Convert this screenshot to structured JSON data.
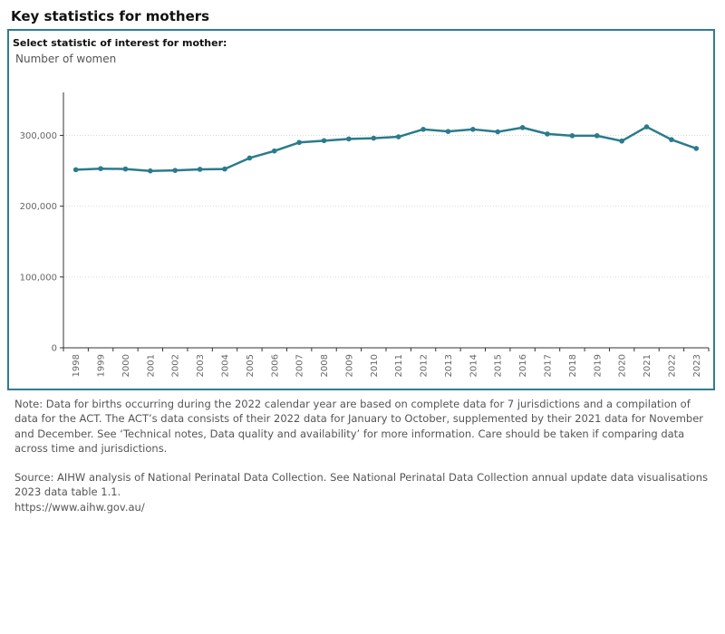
{
  "header": {
    "title": "Key statistics for mothers"
  },
  "selector": {
    "label": "Select statistic of interest for mother:",
    "value": "Number of women"
  },
  "colors": {
    "line": "#2a7b8c",
    "frame": "#2f7d8f",
    "grid": "#d9d9d9"
  },
  "chart_data": {
    "type": "line",
    "title": "",
    "xlabel": "",
    "ylabel": "",
    "x": [
      "1998",
      "1999",
      "2000",
      "2001",
      "2002",
      "2003",
      "2004",
      "2005",
      "2006",
      "2007",
      "2008",
      "2009",
      "2010",
      "2011",
      "2012",
      "2013",
      "2014",
      "2015",
      "2016",
      "2017",
      "2018",
      "2019",
      "2020",
      "2021",
      "2022",
      "2023"
    ],
    "series": [
      {
        "values": [
          251500,
          253000,
          252500,
          249800,
          250500,
          252000,
          252500,
          268000,
          278000,
          290000,
          292500,
          295000,
          296000,
          298000,
          308500,
          305500,
          308500,
          305000,
          311000,
          302000,
          299500,
          299500,
          292000,
          312000,
          294000,
          281500
        ]
      }
    ],
    "ylim": [
      0,
      330000
    ],
    "yticks": [
      0,
      100000,
      200000,
      300000
    ],
    "ytick_labels": [
      "0",
      "100,000",
      "200,000",
      "300,000"
    ],
    "grid": true,
    "legend": "none"
  },
  "notes": {
    "note": "Note: Data for births occurring during the 2022 calendar year are based on complete data for 7 jurisdictions and a compilation of data for the ACT. The ACT’s data consists of their 2022 data for January to October, supplemented by their 2021 data for November and December. See ‘Technical notes, Data quality and availability’ for more information. Care should be taken if comparing data across time and jurisdictions.",
    "source": "Source: AIHW analysis of National Perinatal Data Collection. See National Perinatal Data Collection annual update data visualisations 2023 data table 1.1.",
    "url": "https://www.aihw.gov.au/"
  }
}
